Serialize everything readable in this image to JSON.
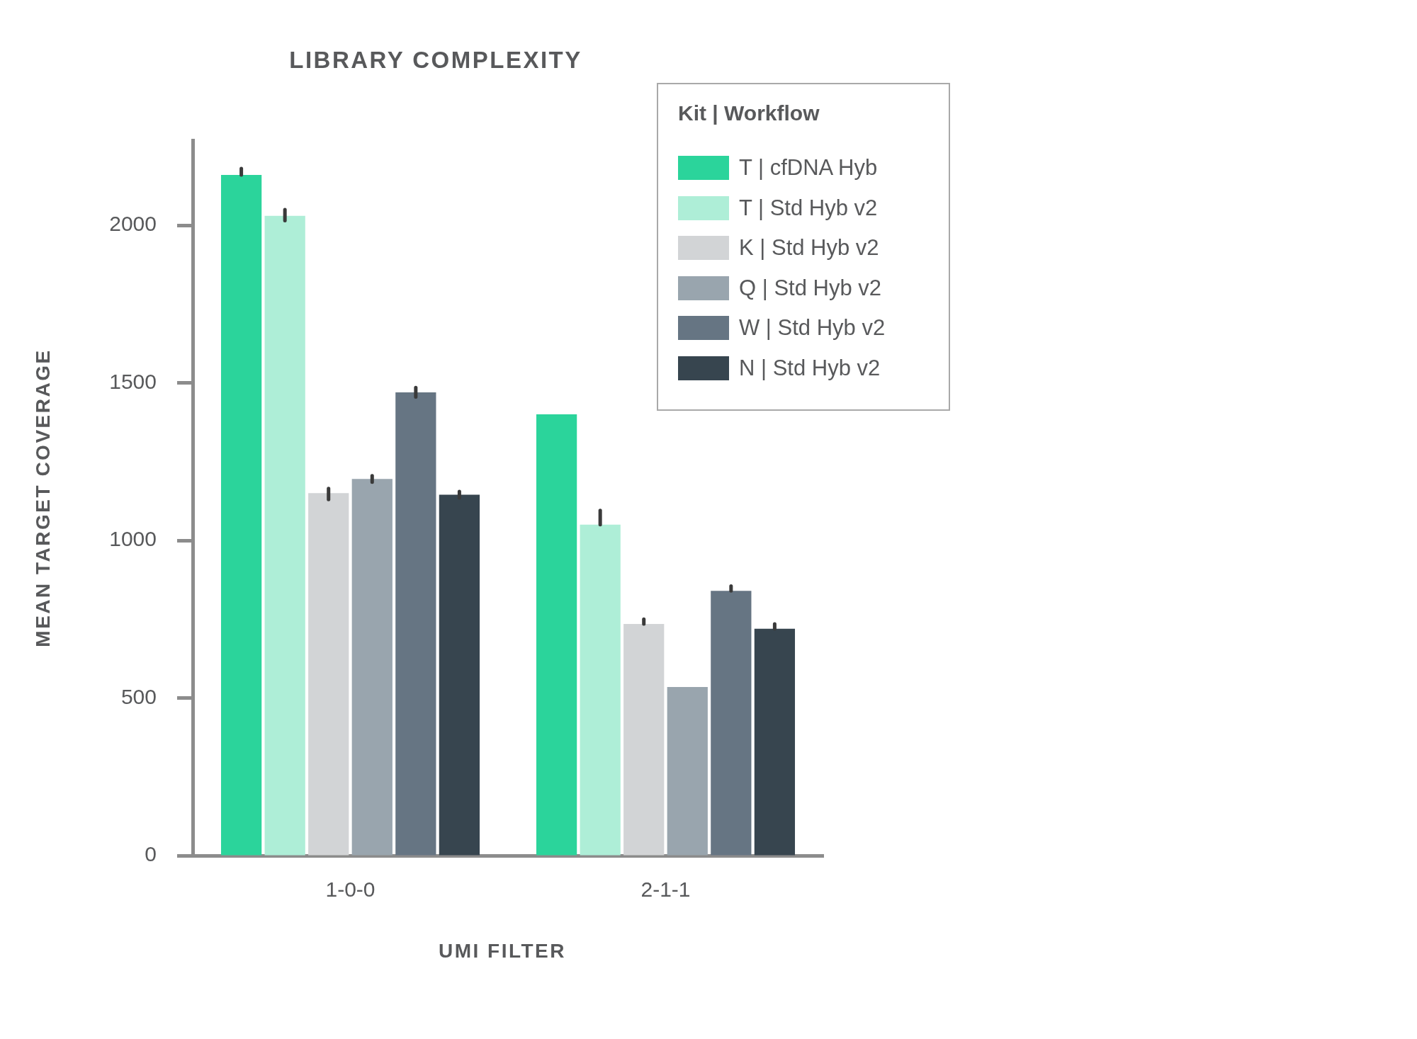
{
  "chart_data": {
    "type": "bar",
    "title": "LIBRARY COMPLEXITY",
    "xlabel": "UMI FILTER",
    "ylabel": "MEAN TARGET COVERAGE",
    "legend_title": "Kit | Workflow",
    "categories": [
      "1-0-0",
      "2-1-1"
    ],
    "series": [
      {
        "name": "T | cfDNA Hyb",
        "color": "#2bd49b",
        "values": [
          2160,
          1400
        ],
        "errors": [
          [
            2160,
            2180
          ],
          null
        ]
      },
      {
        "name": "T | Std Hyb v2",
        "color": "#aeeed7",
        "values": [
          2030,
          1050
        ],
        "errors": [
          [
            2015,
            2050
          ],
          [
            1050,
            1095
          ]
        ]
      },
      {
        "name": "K | Std Hyb v2",
        "color": "#d2d4d6",
        "values": [
          1150,
          735
        ],
        "errors": [
          [
            1130,
            1165
          ],
          [
            735,
            750
          ]
        ]
      },
      {
        "name": "Q | Std Hyb v2",
        "color": "#99a5ae",
        "values": [
          1195,
          535
        ],
        "errors": [
          [
            1185,
            1205
          ],
          null
        ]
      },
      {
        "name": "W | Std Hyb v2",
        "color": "#667583",
        "values": [
          1470,
          840
        ],
        "errors": [
          [
            1455,
            1485
          ],
          [
            840,
            855
          ]
        ]
      },
      {
        "name": "N | Std Hyb v2",
        "color": "#37454f",
        "values": [
          1145,
          720
        ],
        "errors": [
          [
            1135,
            1155
          ],
          [
            720,
            735
          ]
        ]
      }
    ],
    "ylim": [
      0,
      2270
    ],
    "yticks": [
      0,
      500,
      1000,
      1500,
      2000
    ],
    "grid": false,
    "legend": "top right"
  }
}
